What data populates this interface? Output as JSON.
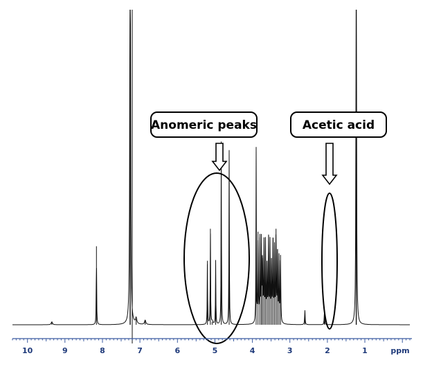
{
  "chart_data": {
    "type": "line",
    "title": "",
    "xlabel": "",
    "ylabel": "",
    "x_unit_label": "ppm",
    "x_reversed": true,
    "xlim": [
      10.4,
      -0.2
    ],
    "x_ticks": [
      "10",
      "9",
      "8",
      "7",
      "6",
      "5",
      "4",
      "3",
      "2",
      "1"
    ],
    "y_axis_shown": false,
    "grid": false,
    "peaks": [
      {
        "ppm": 9.35,
        "height": 0.01,
        "width": 0.02
      },
      {
        "ppm": 8.16,
        "height": 0.27,
        "width": 0.006
      },
      {
        "ppm": 7.26,
        "height": 1.8,
        "width": 0.01,
        "truncated": true
      },
      {
        "ppm": 7.1,
        "height": 0.02,
        "width": 0.02
      },
      {
        "ppm": 6.86,
        "height": 0.015,
        "width": 0.02
      },
      {
        "ppm": 5.2,
        "height": 0.22,
        "width": 0.006
      },
      {
        "ppm": 5.12,
        "height": 0.33,
        "width": 0.006
      },
      {
        "ppm": 5.07,
        "height": 0.01,
        "width": 0.02
      },
      {
        "ppm": 4.98,
        "height": 0.22,
        "width": 0.006
      },
      {
        "ppm": 4.83,
        "height": 0.63,
        "width": 0.006
      },
      {
        "ppm": 4.62,
        "height": 0.6,
        "width": 0.006
      },
      {
        "ppm": 3.9,
        "height": 0.6,
        "width": 0.006
      },
      {
        "ppm": 3.85,
        "height": 0.32,
        "width": 0.008
      },
      {
        "ppm": 3.8,
        "height": 0.3,
        "width": 0.008
      },
      {
        "ppm": 3.76,
        "height": 0.28,
        "width": 0.008
      },
      {
        "ppm": 3.73,
        "height": 0.23,
        "width": 0.008
      },
      {
        "ppm": 3.69,
        "height": 0.3,
        "width": 0.008
      },
      {
        "ppm": 3.65,
        "height": 0.27,
        "width": 0.008
      },
      {
        "ppm": 3.61,
        "height": 0.22,
        "width": 0.008
      },
      {
        "ppm": 3.57,
        "height": 0.31,
        "width": 0.008
      },
      {
        "ppm": 3.53,
        "height": 0.27,
        "width": 0.008
      },
      {
        "ppm": 3.49,
        "height": 0.23,
        "width": 0.008
      },
      {
        "ppm": 3.45,
        "height": 0.3,
        "width": 0.008
      },
      {
        "ppm": 3.41,
        "height": 0.25,
        "width": 0.008
      },
      {
        "ppm": 3.37,
        "height": 0.33,
        "width": 0.008
      },
      {
        "ppm": 3.33,
        "height": 0.26,
        "width": 0.008
      },
      {
        "ppm": 3.29,
        "height": 0.22,
        "width": 0.008
      },
      {
        "ppm": 3.25,
        "height": 0.24,
        "width": 0.008
      },
      {
        "ppm": 2.6,
        "height": 0.05,
        "width": 0.008
      },
      {
        "ppm": 2.08,
        "height": 0.04,
        "width": 0.008
      },
      {
        "ppm": 1.23,
        "height": 1.8,
        "width": 0.008,
        "truncated": true
      }
    ],
    "annotations": [
      {
        "text": "Anomeric peaks",
        "target_ppm": 4.9
      },
      {
        "text": "Acetic acid",
        "target_ppm": 2.05
      }
    ]
  }
}
